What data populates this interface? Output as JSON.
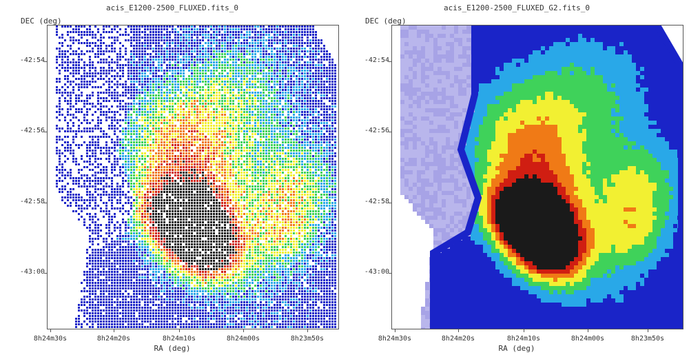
{
  "panels": [
    {
      "title": "acis_E1200-2500_FLUXED.fits_0",
      "ylabel": "DEC (deg)",
      "xlabel": "RA (deg)",
      "yticks": [
        "-42:54",
        "-42:56",
        "-42:58",
        "-43:00"
      ],
      "xticks": [
        "8h24m30s",
        "8h24m20s",
        "8h24m10s",
        "8h24m00s",
        "8h23m50s"
      ],
      "style": "raw"
    },
    {
      "title": "acis_E1200-2500_FLUXED_G2.fits_0",
      "ylabel": "DEC (deg)",
      "xlabel": "RA (deg)",
      "yticks": [
        "-42:54",
        "-42:56",
        "-42:58",
        "-43:00"
      ],
      "xticks": [
        "8h24m30s",
        "8h24m20s",
        "8h24m10s",
        "8h24m00s",
        "8h23m50s"
      ],
      "style": "smoothed"
    }
  ],
  "colormap": {
    "low": "#1a24c8",
    "midlow": "#29a8e8",
    "mid": "#3fd25a",
    "midhigh": "#f2f032",
    "high": "#f07a16",
    "peak": "#d01e12",
    "core": "#1a1a1a",
    "faint": "#b9b6ec"
  }
}
